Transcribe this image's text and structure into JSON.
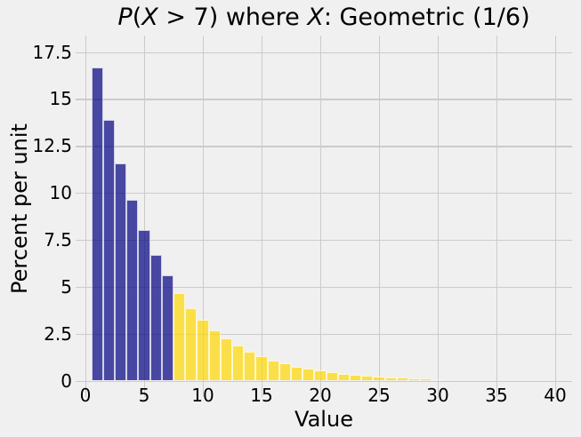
{
  "figure": {
    "background_color": "#F0F0F0",
    "grid_color": "#CBCBCB",
    "text_color": "#000000"
  },
  "chart_data": {
    "type": "bar",
    "title": "P(X > 7) where X: Geometric (1/6)",
    "title_segments": [
      {
        "text": "P",
        "italic": true
      },
      {
        "text": "(",
        "italic": false
      },
      {
        "text": "X",
        "italic": true
      },
      {
        "text": " > 7) where ",
        "italic": false
      },
      {
        "text": "X",
        "italic": true
      },
      {
        "text": ": Geometric (1/6)",
        "italic": false
      }
    ],
    "xlabel": "Value",
    "ylabel": "Percent per unit",
    "distribution": "Geometric (1/6)",
    "event": "X > 7",
    "event_threshold": 7,
    "x": [
      1,
      2,
      3,
      4,
      5,
      6,
      7,
      8,
      9,
      10,
      11,
      12,
      13,
      14,
      15,
      16,
      17,
      18,
      19,
      20,
      21,
      22,
      23,
      24,
      25,
      26,
      27,
      28,
      29,
      30
    ],
    "values": [
      16.667,
      13.889,
      11.574,
      9.645,
      8.038,
      6.698,
      5.582,
      4.651,
      3.876,
      3.23,
      2.692,
      2.243,
      1.869,
      1.558,
      1.298,
      1.082,
      0.901,
      0.751,
      0.626,
      0.522,
      0.435,
      0.362,
      0.302,
      0.251,
      0.209,
      0.175,
      0.145,
      0.121,
      0.101,
      0.084
    ],
    "bar_width": 1,
    "bar_color_default": "rgba(0,0,128,0.7)",
    "bar_color_event": "rgba(255,215,0,0.7)",
    "bar_edge_color": "rgba(255,255,255,0.75)",
    "xticks": [
      0,
      5,
      10,
      15,
      20,
      25,
      30,
      35,
      40
    ],
    "yticks": [
      0,
      2.5,
      5,
      7.5,
      10,
      12.5,
      15,
      17.5
    ],
    "xlim": [
      -0.85,
      41.5
    ],
    "ylim": [
      0,
      18.4
    ],
    "grid": true,
    "legend": null
  }
}
